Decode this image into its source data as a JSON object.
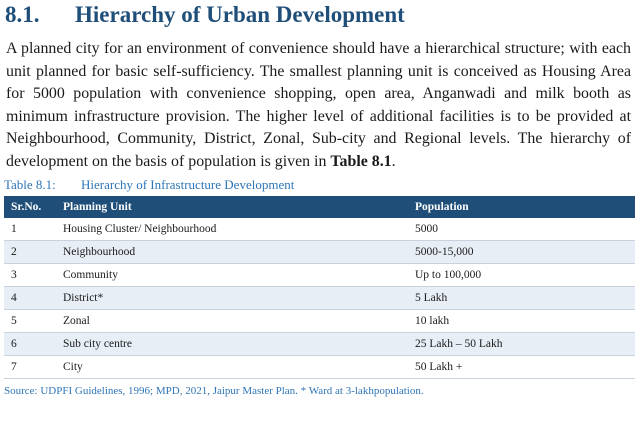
{
  "section": {
    "number": "8.1.",
    "title": "Hierarchy of Urban Development"
  },
  "paragraph": {
    "text": "A planned city for an environment of convenience should have a hierarchical structure; with each unit planned for basic self-sufficiency. The smallest planning unit is conceived as Housing Area for 5000 population with convenience shopping, open area, Anganwadi and milk booth as minimum infrastructure provision. The higher level of additional facilities is to be provided at Neighbourhood, Community, District, Zonal, Sub-city and Regional levels. The hierarchy of development on the basis of population is given in ",
    "ref": "Table 8.1",
    "end": "."
  },
  "table": {
    "caption_number": "Table 8.1:",
    "caption_title": "Hierarchy of Infrastructure Development",
    "headers": [
      "Sr.No.",
      "Planning Unit",
      "Population"
    ],
    "rows": [
      [
        "1",
        "Housing Cluster/ Neighbourhood",
        "5000"
      ],
      [
        "2",
        "Neighbourhood",
        "5000-15,000"
      ],
      [
        "3",
        "Community",
        "Up to 100,000"
      ],
      [
        "4",
        "District*",
        "5 Lakh"
      ],
      [
        "5",
        "Zonal",
        "10 lakh"
      ],
      [
        "6",
        "Sub city centre",
        "25 Lakh – 50 Lakh"
      ],
      [
        "7",
        "City",
        "50 Lakh +"
      ]
    ],
    "source": "Source: UDPFI Guidelines, 1996; MPD, 2021, Jaipur Master Plan. * Ward at 3-lakhpopulation."
  }
}
